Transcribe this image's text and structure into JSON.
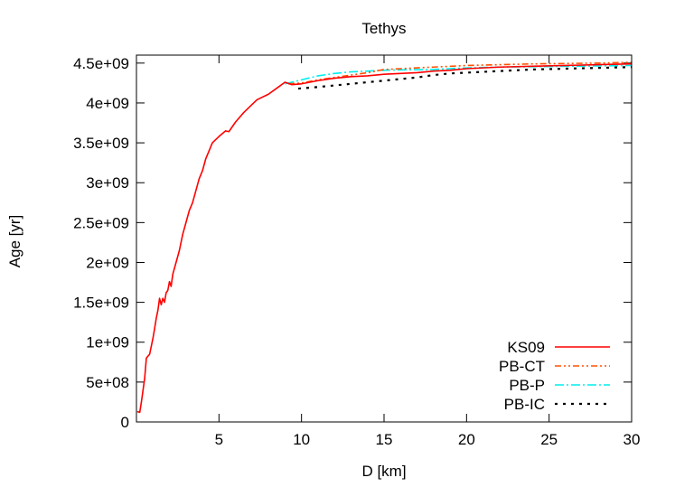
{
  "chart_data": {
    "type": "line",
    "title": "Tethys",
    "xlabel": "D [km]",
    "ylabel": "Age [yr]",
    "xlim": [
      0,
      30
    ],
    "ylim": [
      0,
      4600000000
    ],
    "x_ticks": [
      {
        "value": 5,
        "label": "5"
      },
      {
        "value": 10,
        "label": "10"
      },
      {
        "value": 15,
        "label": "15"
      },
      {
        "value": 20,
        "label": "20"
      },
      {
        "value": 25,
        "label": "25"
      },
      {
        "value": 30,
        "label": "30"
      }
    ],
    "y_ticks": [
      {
        "value": 0,
        "label": "0"
      },
      {
        "value": 500000000,
        "label": "5e+08"
      },
      {
        "value": 1000000000,
        "label": "1e+09"
      },
      {
        "value": 1500000000,
        "label": "1.5e+09"
      },
      {
        "value": 2000000000,
        "label": "2e+09"
      },
      {
        "value": 2500000000,
        "label": "2.5e+09"
      },
      {
        "value": 3000000000,
        "label": "3e+09"
      },
      {
        "value": 3500000000,
        "label": "3.5e+09"
      },
      {
        "value": 4000000000,
        "label": "4e+09"
      },
      {
        "value": 4500000000,
        "label": "4.5e+09"
      }
    ],
    "grid": false,
    "legend_position": "bottom-right",
    "series": [
      {
        "name": "KS09",
        "color": "#ff0000",
        "dash": "solid",
        "points": [
          [
            0.05,
            130000000
          ],
          [
            0.2,
            120000000
          ],
          [
            0.3,
            250000000
          ],
          [
            0.5,
            550000000
          ],
          [
            0.6,
            800000000
          ],
          [
            0.8,
            850000000
          ],
          [
            1.0,
            1050000000
          ],
          [
            1.1,
            1170000000
          ],
          [
            1.2,
            1300000000
          ],
          [
            1.3,
            1400000000
          ],
          [
            1.4,
            1550000000
          ],
          [
            1.5,
            1470000000
          ],
          [
            1.6,
            1550000000
          ],
          [
            1.7,
            1500000000
          ],
          [
            1.8,
            1620000000
          ],
          [
            1.9,
            1650000000
          ],
          [
            2.0,
            1760000000
          ],
          [
            2.1,
            1700000000
          ],
          [
            2.2,
            1850000000
          ],
          [
            2.4,
            2000000000
          ],
          [
            2.6,
            2150000000
          ],
          [
            2.8,
            2350000000
          ],
          [
            3.0,
            2500000000
          ],
          [
            3.2,
            2650000000
          ],
          [
            3.4,
            2750000000
          ],
          [
            3.6,
            2900000000
          ],
          [
            3.8,
            3050000000
          ],
          [
            4.0,
            3150000000
          ],
          [
            4.2,
            3300000000
          ],
          [
            4.4,
            3400000000
          ],
          [
            4.6,
            3500000000
          ],
          [
            5.0,
            3580000000
          ],
          [
            5.4,
            3650000000
          ],
          [
            5.6,
            3640000000
          ],
          [
            6.0,
            3760000000
          ],
          [
            6.5,
            3880000000
          ],
          [
            7.0,
            3980000000
          ],
          [
            7.3,
            4040000000
          ],
          [
            8.0,
            4110000000
          ],
          [
            8.6,
            4200000000
          ],
          [
            9.0,
            4260000000
          ],
          [
            9.4,
            4230000000
          ],
          [
            10.0,
            4240000000
          ],
          [
            11.0,
            4280000000
          ],
          [
            12.0,
            4310000000
          ],
          [
            13.0,
            4330000000
          ],
          [
            14.0,
            4340000000
          ],
          [
            15.0,
            4360000000
          ],
          [
            16.0,
            4370000000
          ],
          [
            17.0,
            4380000000
          ],
          [
            18.0,
            4400000000
          ],
          [
            19.0,
            4410000000
          ],
          [
            20.0,
            4430000000
          ],
          [
            22.0,
            4450000000
          ],
          [
            24.0,
            4460000000
          ],
          [
            26.0,
            4470000000
          ],
          [
            28.0,
            4480000000
          ],
          [
            30.0,
            4490000000
          ]
        ]
      },
      {
        "name": "PB-CT",
        "color": "#ff5000",
        "dash": "dash-dot-dot",
        "points": [
          [
            9.2,
            4240000000
          ],
          [
            10.0,
            4250000000
          ],
          [
            11.0,
            4290000000
          ],
          [
            12.0,
            4320000000
          ],
          [
            13.0,
            4350000000
          ],
          [
            14.0,
            4380000000
          ],
          [
            15.0,
            4420000000
          ],
          [
            16.0,
            4430000000
          ],
          [
            18.0,
            4450000000
          ],
          [
            20.0,
            4470000000
          ],
          [
            22.0,
            4480000000
          ],
          [
            24.0,
            4490000000
          ],
          [
            26.0,
            4495000000
          ],
          [
            28.0,
            4500000000
          ],
          [
            30.0,
            4510000000
          ]
        ]
      },
      {
        "name": "PB-P",
        "color": "#00eeee",
        "dash": "dash-dot",
        "points": [
          [
            9.0,
            4240000000
          ],
          [
            10.0,
            4290000000
          ],
          [
            11.0,
            4340000000
          ],
          [
            12.0,
            4370000000
          ],
          [
            13.0,
            4390000000
          ],
          [
            14.0,
            4400000000
          ],
          [
            15.0,
            4410000000
          ],
          [
            16.0,
            4415000000
          ],
          [
            18.0,
            4420000000
          ],
          [
            20.0,
            4440000000
          ],
          [
            22.0,
            4450000000
          ],
          [
            24.0,
            4455000000
          ],
          [
            26.0,
            4460000000
          ],
          [
            28.0,
            4465000000
          ],
          [
            30.0,
            4470000000
          ]
        ]
      },
      {
        "name": "PB-IC",
        "color": "#000000",
        "dash": "dotted",
        "points": [
          [
            9.8,
            4180000000
          ],
          [
            11.0,
            4200000000
          ],
          [
            12.0,
            4220000000
          ],
          [
            13.0,
            4240000000
          ],
          [
            14.0,
            4260000000
          ],
          [
            15.0,
            4280000000
          ],
          [
            16.0,
            4300000000
          ],
          [
            17.0,
            4320000000
          ],
          [
            18.0,
            4350000000
          ],
          [
            19.0,
            4370000000
          ],
          [
            20.0,
            4380000000
          ],
          [
            22.0,
            4400000000
          ],
          [
            24.0,
            4420000000
          ],
          [
            26.0,
            4430000000
          ],
          [
            28.0,
            4440000000
          ],
          [
            30.0,
            4450000000
          ]
        ]
      }
    ]
  }
}
